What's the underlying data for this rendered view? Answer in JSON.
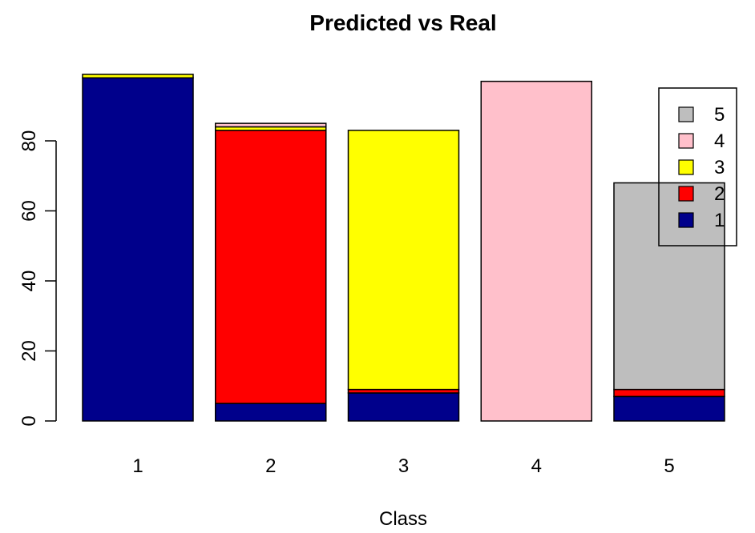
{
  "chart_data": {
    "type": "bar",
    "stacked": true,
    "title": "Predicted vs Real",
    "xlabel": "Class",
    "ylabel": "",
    "categories": [
      "1",
      "2",
      "3",
      "4",
      "5"
    ],
    "yticks": [
      0,
      20,
      40,
      60,
      80
    ],
    "ylim": [
      0,
      100
    ],
    "series": [
      {
        "name": "1",
        "color": "#00008B",
        "values": [
          98,
          5,
          8,
          0,
          7
        ]
      },
      {
        "name": "2",
        "color": "#FF0000",
        "values": [
          0,
          78,
          1,
          0,
          2
        ]
      },
      {
        "name": "3",
        "color": "#FFFF00",
        "values": [
          1,
          1,
          74,
          0,
          0
        ]
      },
      {
        "name": "4",
        "color": "#FFC0CB",
        "values": [
          0,
          1,
          0,
          97,
          0
        ]
      },
      {
        "name": "5",
        "color": "#BEBEBE",
        "values": [
          0,
          0,
          0,
          0,
          59
        ]
      }
    ],
    "legend": {
      "position": "top-right",
      "order": [
        "5",
        "4",
        "3",
        "2",
        "1"
      ]
    },
    "grid": false
  }
}
